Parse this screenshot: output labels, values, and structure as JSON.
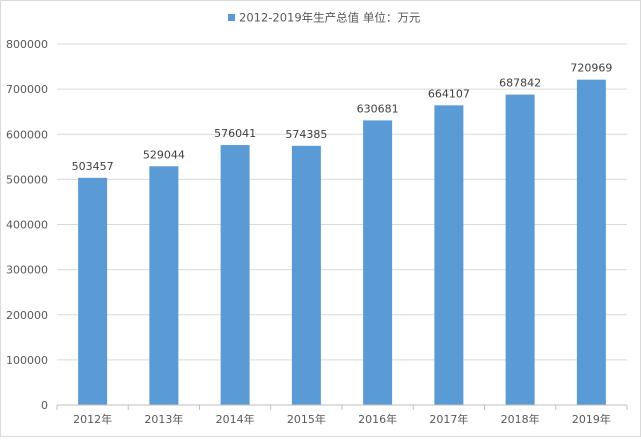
{
  "chart_data": {
    "type": "bar",
    "title": "",
    "xlabel": "",
    "ylabel": "",
    "legend": {
      "position": "top",
      "entries": [
        "2012-2019年生产总值 单位：万元"
      ]
    },
    "categories": [
      "2012年",
      "2013年",
      "2014年",
      "2015年",
      "2016年",
      "2017年",
      "2018年",
      "2019年"
    ],
    "series": [
      {
        "name": "2012-2019年生产总值 单位：万元",
        "values": [
          503457,
          529044,
          576041,
          574385,
          630681,
          664107,
          687842,
          720969
        ],
        "color": "#5b9bd5"
      }
    ],
    "ylim": [
      0,
      800000
    ],
    "yticks": [
      0,
      100000,
      200000,
      300000,
      400000,
      500000,
      600000,
      700000,
      800000
    ],
    "yticklabels": [
      "0",
      "100000",
      "200000",
      "300000",
      "400000",
      "500000",
      "600000",
      "700000",
      "800000"
    ],
    "grid": true,
    "data_labels": true
  }
}
